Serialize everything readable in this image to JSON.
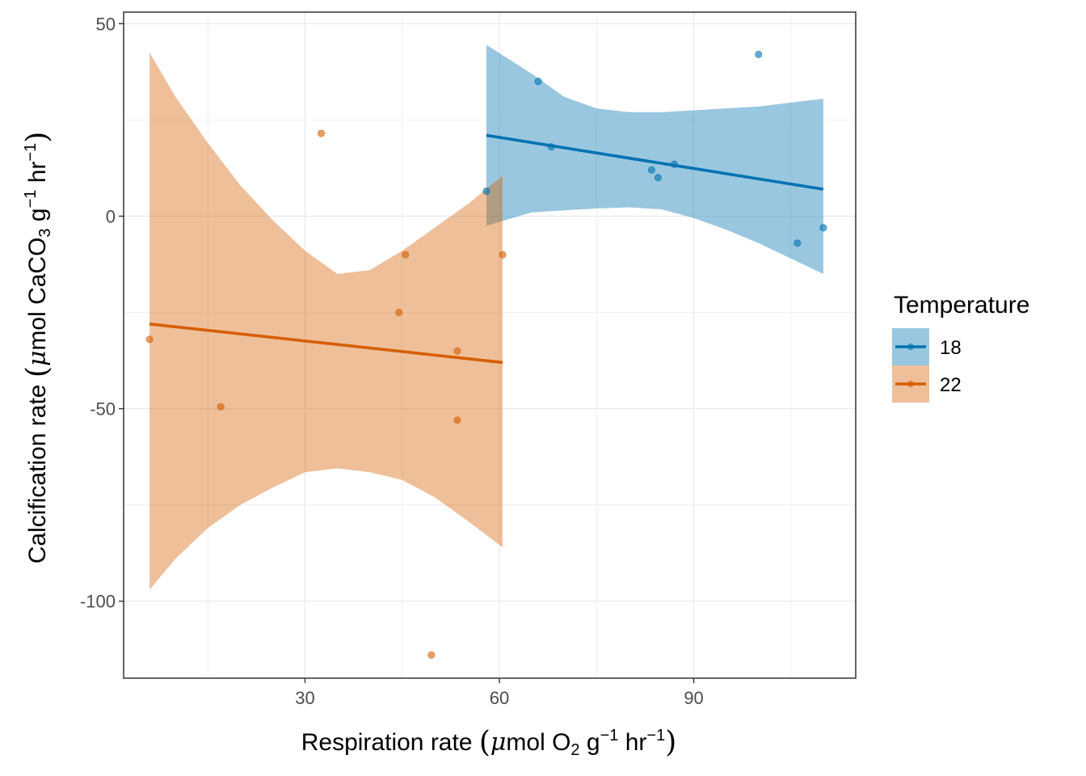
{
  "chart_data": {
    "type": "scatter",
    "xlabel": {
      "main": "Respiration rate ",
      "mu": "μ",
      "pre": "mol O",
      "sub": "2",
      "mid": " g",
      "sup1": "−1",
      "mid2": " hr",
      "sup2": "−1"
    },
    "ylabel": {
      "main": "Calcification rate ",
      "mu": "μ",
      "pre": "mol CaCO",
      "sub": "3",
      "mid": " g",
      "sup1": "−1",
      "mid2": " hr",
      "sup2": "−1"
    },
    "xlim": [
      2,
      115
    ],
    "ylim": [
      -120,
      53
    ],
    "x_ticks": [
      30,
      60,
      90
    ],
    "y_ticks": [
      50,
      0,
      -50,
      -100
    ],
    "grid": true,
    "legend": {
      "title": "Temperature",
      "placement": "right"
    },
    "series": [
      {
        "name": "18",
        "color": "#0072B2",
        "points": [
          {
            "x": 58,
            "y": 6.5
          },
          {
            "x": 66,
            "y": 35
          },
          {
            "x": 68,
            "y": 18
          },
          {
            "x": 83.5,
            "y": 12
          },
          {
            "x": 84.5,
            "y": 10
          },
          {
            "x": 87,
            "y": 13.5
          },
          {
            "x": 100,
            "y": 42
          },
          {
            "x": 106,
            "y": -7
          },
          {
            "x": 110,
            "y": -3
          }
        ],
        "fit": {
          "x": [
            58,
            110
          ],
          "y": [
            21,
            7
          ]
        },
        "band": {
          "x": [
            58,
            65,
            70,
            75,
            80,
            85,
            90,
            95,
            100,
            105,
            110
          ],
          "upper": [
            44.5,
            37,
            31,
            28,
            27,
            27,
            27.5,
            28,
            28.5,
            29.5,
            30.5
          ],
          "lower": [
            -2.5,
            1,
            1.5,
            2,
            2.3,
            1.8,
            -0.5,
            -3.5,
            -7,
            -11,
            -15
          ]
        }
      },
      {
        "name": "22",
        "color": "#D55E00",
        "points": [
          {
            "x": 6,
            "y": -32
          },
          {
            "x": 17,
            "y": -49.5
          },
          {
            "x": 32.5,
            "y": 21.5
          },
          {
            "x": 44.5,
            "y": -25
          },
          {
            "x": 45.5,
            "y": -10
          },
          {
            "x": 49.5,
            "y": -114
          },
          {
            "x": 53.5,
            "y": -35
          },
          {
            "x": 53.5,
            "y": -53
          },
          {
            "x": 60.5,
            "y": -10
          }
        ],
        "fit": {
          "x": [
            6,
            60.5
          ],
          "y": [
            -28,
            -38
          ]
        },
        "band": {
          "x": [
            6,
            10,
            15,
            20,
            25,
            30,
            35,
            40,
            45,
            50,
            55,
            60.5
          ],
          "upper": [
            42.5,
            31,
            19,
            8,
            -1,
            -9,
            -15,
            -14,
            -9,
            -3,
            3,
            10.5
          ],
          "lower": [
            -97,
            -89,
            -81,
            -75,
            -70.5,
            -66.5,
            -65.5,
            -66.5,
            -68.5,
            -73,
            -79,
            -86
          ]
        }
      }
    ]
  }
}
